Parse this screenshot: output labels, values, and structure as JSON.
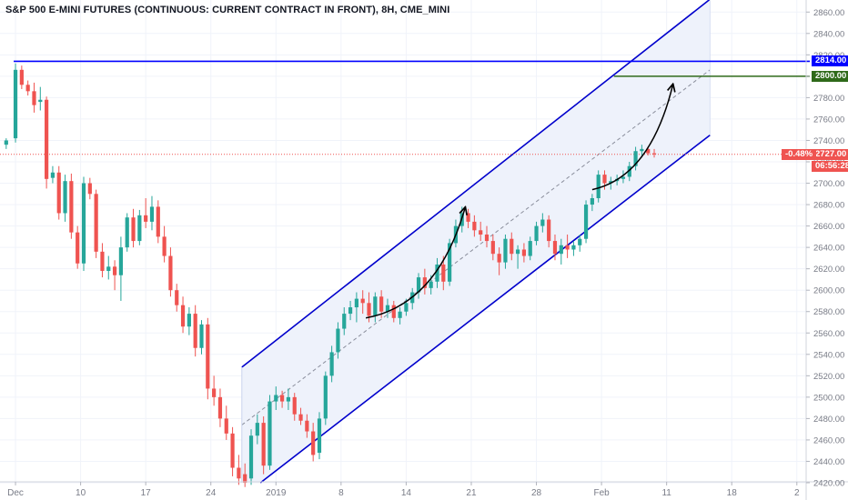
{
  "title": "S&P 500 E-MINI FUTURES (CONTINUOUS: CURRENT CONTRACT IN FRONT), 8H, CME_MINI",
  "colors": {
    "up": "#26a69a",
    "down": "#ef5350",
    "channel": "#0000cc",
    "channel_fill": "#eef2fb",
    "level_resistance": "#0000ff",
    "level_target": "#2f6a1a",
    "current": "#ef5350",
    "grid": "#f0f3fa",
    "axis_text": "#787b86"
  },
  "price_tags": {
    "resistance": "2814.00",
    "target": "2800.00",
    "current": "2727.00",
    "countdown": "06:56:28",
    "change_pct": "-0.48%"
  },
  "chart_data": {
    "type": "candlestick",
    "title": "S&P 500 E-MINI FUTURES (CONTINUOUS: CURRENT CONTRACT IN FRONT), 8H, CME_MINI",
    "ylim": [
      2420,
      2870
    ],
    "y_ticks": [
      2420,
      2440,
      2460,
      2480,
      2500,
      2520,
      2540,
      2560,
      2580,
      2600,
      2620,
      2640,
      2660,
      2680,
      2700,
      2720,
      2740,
      2760,
      2780,
      2800,
      2820,
      2840,
      2860
    ],
    "x_tick_labels": [
      {
        "label": "Dec",
        "index": 0
      },
      {
        "label": "10",
        "index": 21
      },
      {
        "label": "17",
        "index": 42
      },
      {
        "label": "24",
        "index": 63
      },
      {
        "label": "2019",
        "index": 84
      },
      {
        "label": "8",
        "index": 105
      },
      {
        "label": "14",
        "index": 126
      },
      {
        "label": "21",
        "index": 147
      },
      {
        "label": "28",
        "index": 168
      },
      {
        "label": "Feb",
        "index": 189
      },
      {
        "label": "11",
        "index": 210
      },
      {
        "label": "18",
        "index": 231
      },
      {
        "label": "2",
        "index": 252
      }
    ],
    "x_range": [
      -5,
      255
    ],
    "grid": true,
    "horizontal_levels": [
      {
        "price": 2814,
        "label": "2814.00",
        "color": "#0000ff"
      },
      {
        "price": 2800,
        "label": "2800.00",
        "color": "#2f6a1a",
        "from_index": 193
      }
    ],
    "current_price": 2727,
    "channel": {
      "upper": [
        {
          "i": 73,
          "price": 2528
        },
        {
          "i": 224,
          "price": 2872
        }
      ],
      "lower": [
        {
          "i": 79,
          "price": 2420
        },
        {
          "i": 224,
          "price": 2745
        }
      ],
      "mid": [
        {
          "i": 73,
          "price": 2474
        },
        {
          "i": 224,
          "price": 2806
        }
      ]
    },
    "arrows": [
      {
        "from": {
          "i": 113,
          "price": 2574
        },
        "to": {
          "i": 145,
          "price": 2677
        }
      },
      {
        "from": {
          "i": 186,
          "price": 2694
        },
        "to": {
          "i": 212,
          "price": 2792
        }
      }
    ],
    "candles": [
      {
        "i": -3,
        "o": 2736,
        "h": 2742,
        "l": 2732,
        "c": 2740
      },
      {
        "i": 0,
        "o": 2742,
        "h": 2812,
        "l": 2738,
        "c": 2806
      },
      {
        "i": 2,
        "o": 2806,
        "h": 2810,
        "l": 2788,
        "c": 2792
      },
      {
        "i": 4,
        "o": 2792,
        "h": 2796,
        "l": 2782,
        "c": 2786
      },
      {
        "i": 6,
        "o": 2786,
        "h": 2794,
        "l": 2766,
        "c": 2773
      },
      {
        "i": 8,
        "o": 2776,
        "h": 2790,
        "l": 2768,
        "c": 2778
      },
      {
        "i": 10,
        "o": 2778,
        "h": 2781,
        "l": 2695,
        "c": 2704
      },
      {
        "i": 12,
        "o": 2705,
        "h": 2716,
        "l": 2700,
        "c": 2710
      },
      {
        "i": 14,
        "o": 2710,
        "h": 2716,
        "l": 2666,
        "c": 2672
      },
      {
        "i": 16,
        "o": 2672,
        "h": 2708,
        "l": 2664,
        "c": 2702
      },
      {
        "i": 18,
        "o": 2702,
        "h": 2709,
        "l": 2648,
        "c": 2654
      },
      {
        "i": 20,
        "o": 2654,
        "h": 2660,
        "l": 2620,
        "c": 2625
      },
      {
        "i": 22,
        "o": 2625,
        "h": 2706,
        "l": 2618,
        "c": 2700
      },
      {
        "i": 24,
        "o": 2700,
        "h": 2705,
        "l": 2685,
        "c": 2690
      },
      {
        "i": 26,
        "o": 2690,
        "h": 2694,
        "l": 2630,
        "c": 2636
      },
      {
        "i": 28,
        "o": 2636,
        "h": 2644,
        "l": 2612,
        "c": 2618
      },
      {
        "i": 30,
        "o": 2618,
        "h": 2632,
        "l": 2610,
        "c": 2622
      },
      {
        "i": 32,
        "o": 2622,
        "h": 2628,
        "l": 2600,
        "c": 2614
      },
      {
        "i": 34,
        "o": 2614,
        "h": 2650,
        "l": 2590,
        "c": 2640
      },
      {
        "i": 36,
        "o": 2640,
        "h": 2672,
        "l": 2636,
        "c": 2668
      },
      {
        "i": 38,
        "o": 2668,
        "h": 2676,
        "l": 2640,
        "c": 2646
      },
      {
        "i": 40,
        "o": 2646,
        "h": 2675,
        "l": 2642,
        "c": 2670
      },
      {
        "i": 42,
        "o": 2670,
        "h": 2686,
        "l": 2658,
        "c": 2664
      },
      {
        "i": 44,
        "o": 2664,
        "h": 2688,
        "l": 2656,
        "c": 2678
      },
      {
        "i": 46,
        "o": 2678,
        "h": 2684,
        "l": 2644,
        "c": 2650
      },
      {
        "i": 48,
        "o": 2650,
        "h": 2660,
        "l": 2626,
        "c": 2632
      },
      {
        "i": 50,
        "o": 2632,
        "h": 2640,
        "l": 2594,
        "c": 2600
      },
      {
        "i": 52,
        "o": 2600,
        "h": 2606,
        "l": 2580,
        "c": 2586
      },
      {
        "i": 54,
        "o": 2586,
        "h": 2594,
        "l": 2560,
        "c": 2566
      },
      {
        "i": 56,
        "o": 2566,
        "h": 2584,
        "l": 2558,
        "c": 2578
      },
      {
        "i": 58,
        "o": 2578,
        "h": 2586,
        "l": 2538,
        "c": 2546
      },
      {
        "i": 60,
        "o": 2546,
        "h": 2572,
        "l": 2540,
        "c": 2568
      },
      {
        "i": 62,
        "o": 2568,
        "h": 2574,
        "l": 2498,
        "c": 2508
      },
      {
        "i": 64,
        "o": 2508,
        "h": 2520,
        "l": 2492,
        "c": 2500
      },
      {
        "i": 66,
        "o": 2500,
        "h": 2508,
        "l": 2472,
        "c": 2480
      },
      {
        "i": 68,
        "o": 2480,
        "h": 2492,
        "l": 2460,
        "c": 2466
      },
      {
        "i": 70,
        "o": 2466,
        "h": 2472,
        "l": 2426,
        "c": 2434
      },
      {
        "i": 72,
        "o": 2434,
        "h": 2446,
        "l": 2418,
        "c": 2424
      },
      {
        "i": 74,
        "o": 2428,
        "h": 2438,
        "l": 2416,
        "c": 2420
      },
      {
        "i": 76,
        "o": 2424,
        "h": 2470,
        "l": 2418,
        "c": 2464
      },
      {
        "i": 78,
        "o": 2464,
        "h": 2484,
        "l": 2456,
        "c": 2476
      },
      {
        "i": 80,
        "o": 2476,
        "h": 2482,
        "l": 2428,
        "c": 2436
      },
      {
        "i": 82,
        "o": 2436,
        "h": 2502,
        "l": 2432,
        "c": 2496
      },
      {
        "i": 84,
        "o": 2496,
        "h": 2510,
        "l": 2488,
        "c": 2502
      },
      {
        "i": 86,
        "o": 2502,
        "h": 2506,
        "l": 2490,
        "c": 2496
      },
      {
        "i": 88,
        "o": 2496,
        "h": 2508,
        "l": 2488,
        "c": 2500
      },
      {
        "i": 90,
        "o": 2500,
        "h": 2504,
        "l": 2478,
        "c": 2484
      },
      {
        "i": 92,
        "o": 2484,
        "h": 2490,
        "l": 2474,
        "c": 2478
      },
      {
        "i": 94,
        "o": 2478,
        "h": 2484,
        "l": 2462,
        "c": 2468
      },
      {
        "i": 96,
        "o": 2468,
        "h": 2476,
        "l": 2440,
        "c": 2446
      },
      {
        "i": 98,
        "o": 2448,
        "h": 2486,
        "l": 2442,
        "c": 2480
      },
      {
        "i": 100,
        "o": 2480,
        "h": 2524,
        "l": 2474,
        "c": 2520
      },
      {
        "i": 102,
        "o": 2520,
        "h": 2548,
        "l": 2514,
        "c": 2542
      },
      {
        "i": 104,
        "o": 2542,
        "h": 2570,
        "l": 2536,
        "c": 2564
      },
      {
        "i": 106,
        "o": 2564,
        "h": 2584,
        "l": 2558,
        "c": 2578
      },
      {
        "i": 108,
        "o": 2578,
        "h": 2590,
        "l": 2572,
        "c": 2584
      },
      {
        "i": 110,
        "o": 2584,
        "h": 2598,
        "l": 2570,
        "c": 2592
      },
      {
        "i": 112,
        "o": 2592,
        "h": 2600,
        "l": 2578,
        "c": 2588
      },
      {
        "i": 114,
        "o": 2588,
        "h": 2598,
        "l": 2570,
        "c": 2576
      },
      {
        "i": 116,
        "o": 2576,
        "h": 2598,
        "l": 2570,
        "c": 2594
      },
      {
        "i": 118,
        "o": 2594,
        "h": 2600,
        "l": 2574,
        "c": 2580
      },
      {
        "i": 120,
        "o": 2580,
        "h": 2592,
        "l": 2574,
        "c": 2586
      },
      {
        "i": 122,
        "o": 2586,
        "h": 2590,
        "l": 2570,
        "c": 2574
      },
      {
        "i": 124,
        "o": 2574,
        "h": 2584,
        "l": 2568,
        "c": 2580
      },
      {
        "i": 126,
        "o": 2580,
        "h": 2592,
        "l": 2576,
        "c": 2588
      },
      {
        "i": 128,
        "o": 2588,
        "h": 2602,
        "l": 2582,
        "c": 2598
      },
      {
        "i": 130,
        "o": 2598,
        "h": 2616,
        "l": 2592,
        "c": 2612
      },
      {
        "i": 132,
        "o": 2612,
        "h": 2620,
        "l": 2596,
        "c": 2602
      },
      {
        "i": 134,
        "o": 2602,
        "h": 2614,
        "l": 2596,
        "c": 2608
      },
      {
        "i": 136,
        "o": 2608,
        "h": 2630,
        "l": 2602,
        "c": 2624
      },
      {
        "i": 138,
        "o": 2624,
        "h": 2632,
        "l": 2600,
        "c": 2608
      },
      {
        "i": 140,
        "o": 2608,
        "h": 2648,
        "l": 2604,
        "c": 2644
      },
      {
        "i": 142,
        "o": 2644,
        "h": 2666,
        "l": 2640,
        "c": 2660
      },
      {
        "i": 144,
        "o": 2660,
        "h": 2678,
        "l": 2654,
        "c": 2672
      },
      {
        "i": 146,
        "o": 2672,
        "h": 2676,
        "l": 2658,
        "c": 2664
      },
      {
        "i": 148,
        "o": 2664,
        "h": 2670,
        "l": 2650,
        "c": 2656
      },
      {
        "i": 150,
        "o": 2656,
        "h": 2664,
        "l": 2646,
        "c": 2652
      },
      {
        "i": 152,
        "o": 2652,
        "h": 2660,
        "l": 2640,
        "c": 2646
      },
      {
        "i": 154,
        "o": 2646,
        "h": 2652,
        "l": 2628,
        "c": 2634
      },
      {
        "i": 156,
        "o": 2634,
        "h": 2640,
        "l": 2614,
        "c": 2626
      },
      {
        "i": 158,
        "o": 2626,
        "h": 2652,
        "l": 2620,
        "c": 2648
      },
      {
        "i": 160,
        "o": 2648,
        "h": 2654,
        "l": 2628,
        "c": 2634
      },
      {
        "i": 162,
        "o": 2634,
        "h": 2642,
        "l": 2620,
        "c": 2638
      },
      {
        "i": 164,
        "o": 2638,
        "h": 2644,
        "l": 2626,
        "c": 2632
      },
      {
        "i": 166,
        "o": 2632,
        "h": 2650,
        "l": 2628,
        "c": 2646
      },
      {
        "i": 168,
        "o": 2646,
        "h": 2664,
        "l": 2642,
        "c": 2660
      },
      {
        "i": 170,
        "o": 2660,
        "h": 2672,
        "l": 2654,
        "c": 2666
      },
      {
        "i": 172,
        "o": 2666,
        "h": 2670,
        "l": 2640,
        "c": 2646
      },
      {
        "i": 174,
        "o": 2646,
        "h": 2652,
        "l": 2628,
        "c": 2634
      },
      {
        "i": 176,
        "o": 2634,
        "h": 2648,
        "l": 2624,
        "c": 2642
      },
      {
        "i": 178,
        "o": 2642,
        "h": 2652,
        "l": 2630,
        "c": 2638
      },
      {
        "i": 180,
        "o": 2638,
        "h": 2646,
        "l": 2632,
        "c": 2642
      },
      {
        "i": 182,
        "o": 2642,
        "h": 2652,
        "l": 2636,
        "c": 2648
      },
      {
        "i": 184,
        "o": 2648,
        "h": 2684,
        "l": 2644,
        "c": 2680
      },
      {
        "i": 186,
        "o": 2680,
        "h": 2690,
        "l": 2674,
        "c": 2686
      },
      {
        "i": 188,
        "o": 2686,
        "h": 2712,
        "l": 2682,
        "c": 2708
      },
      {
        "i": 190,
        "o": 2708,
        "h": 2712,
        "l": 2694,
        "c": 2700
      },
      {
        "i": 192,
        "o": 2700,
        "h": 2706,
        "l": 2694,
        "c": 2702
      },
      {
        "i": 194,
        "o": 2702,
        "h": 2708,
        "l": 2698,
        "c": 2704
      },
      {
        "i": 196,
        "o": 2704,
        "h": 2712,
        "l": 2700,
        "c": 2706
      },
      {
        "i": 198,
        "o": 2706,
        "h": 2720,
        "l": 2702,
        "c": 2716
      },
      {
        "i": 200,
        "o": 2716,
        "h": 2734,
        "l": 2712,
        "c": 2730
      },
      {
        "i": 202,
        "o": 2730,
        "h": 2736,
        "l": 2724,
        "c": 2732
      },
      {
        "i": 204,
        "o": 2732,
        "h": 2734,
        "l": 2726,
        "c": 2728
      },
      {
        "i": 206,
        "o": 2728,
        "h": 2732,
        "l": 2724,
        "c": 2727
      }
    ]
  }
}
